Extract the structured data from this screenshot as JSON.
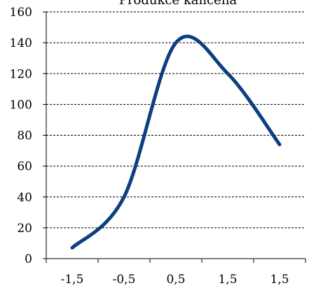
{
  "chart_data": {
    "type": "line",
    "title": "Produkce kanceňa",
    "xlabel": "",
    "ylabel": "",
    "x_tick_labels": [
      "-1,5",
      "-0,5",
      "0,5",
      "1,5",
      "1,5"
    ],
    "y_ticks": [
      0,
      20,
      40,
      60,
      80,
      100,
      120,
      140,
      160
    ],
    "ylim": [
      0,
      160
    ],
    "grid": "horizontal-dashed",
    "series": [
      {
        "color": "#0b3f7f",
        "values": [
          7,
          40,
          140,
          120,
          74
        ]
      }
    ]
  }
}
